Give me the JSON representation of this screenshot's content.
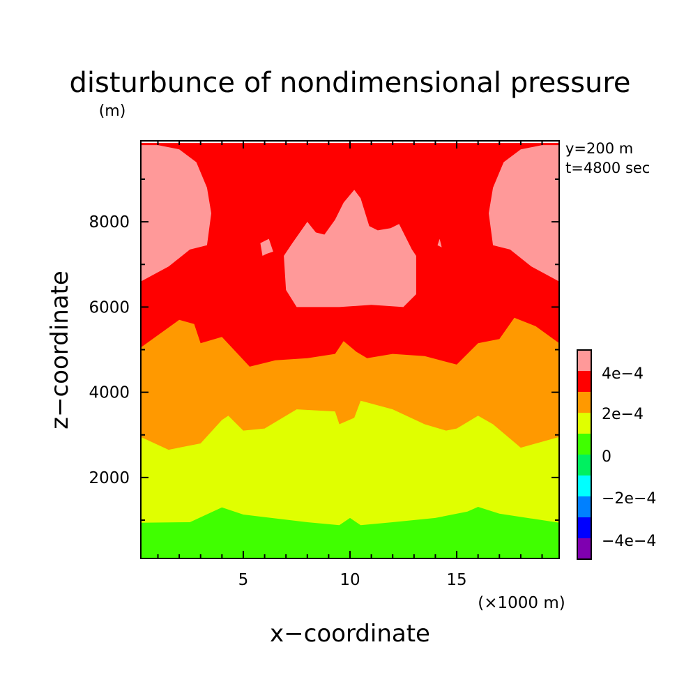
{
  "chart_data": {
    "type": "heatmap",
    "title": "disturbunce of nondimensional pressure",
    "ylabel_unit": "(m)",
    "xlabel": "x−coordinate",
    "ylabel": "z−coordinate",
    "x_unit": "(×1000 m)",
    "annotations": [
      "y=200 m",
      "t=4800 sec"
    ],
    "xlim": [
      0.2,
      19.8
    ],
    "ylim": [
      100,
      9900
    ],
    "x_ticks": [
      {
        "value": 5,
        "label": "5"
      },
      {
        "value": 10,
        "label": "10"
      },
      {
        "value": 15,
        "label": "15"
      }
    ],
    "y_ticks": [
      {
        "value": 2000,
        "label": "2000"
      },
      {
        "value": 4000,
        "label": "4000"
      },
      {
        "value": 6000,
        "label": "6000"
      },
      {
        "value": 8000,
        "label": "8000"
      }
    ],
    "colorbar": {
      "levels": [
        {
          "range": [
            -0.0006,
            -0.0004
          ],
          "color": "#7f00b0"
        },
        {
          "range": [
            -0.0004,
            -0.0003
          ],
          "color": "#0000ff"
        },
        {
          "range": [
            -0.0003,
            -0.0002
          ],
          "color": "#0080ff"
        },
        {
          "range": [
            -0.0002,
            -0.0001
          ],
          "color": "#00ffff"
        },
        {
          "range": [
            -0.0001,
            0.0
          ],
          "color": "#00f060"
        },
        {
          "range": [
            0.0,
            0.0001
          ],
          "color": "#40ff00"
        },
        {
          "range": [
            0.0001,
            0.0002
          ],
          "color": "#e0ff00"
        },
        {
          "range": [
            0.0002,
            0.0003
          ],
          "color": "#ff9900"
        },
        {
          "range": [
            0.0003,
            0.0004
          ],
          "color": "#ff0000"
        },
        {
          "range": [
            0.0004,
            0.0005
          ],
          "color": "#ff9999"
        }
      ],
      "tick_labels": [
        "4e−4",
        "2e−4",
        "0",
        "−2e−4",
        "−4e−4"
      ]
    },
    "contour_bands": [
      {
        "name": "band-0-to-1e-4",
        "color": "#40ff00",
        "top": [
          [
            0.2,
            940
          ],
          [
            2.5,
            950
          ],
          [
            4,
            1300
          ],
          [
            5,
            1130
          ],
          [
            8,
            950
          ],
          [
            9.5,
            880
          ],
          [
            10,
            1050
          ],
          [
            10.5,
            880
          ],
          [
            12,
            950
          ],
          [
            14,
            1050
          ],
          [
            15.5,
            1200
          ],
          [
            16,
            1310
          ],
          [
            17,
            1150
          ],
          [
            19.8,
            940
          ]
        ]
      },
      {
        "name": "band-1e-4-to-2e-4",
        "color": "#e0ff00",
        "top": [
          [
            0.2,
            2950
          ],
          [
            1.5,
            2650
          ],
          [
            3,
            2800
          ],
          [
            4,
            3350
          ],
          [
            4.3,
            3450
          ],
          [
            5,
            3100
          ],
          [
            6,
            3150
          ],
          [
            7.5,
            3600
          ],
          [
            9.3,
            3550
          ],
          [
            9.5,
            3250
          ],
          [
            10.2,
            3400
          ],
          [
            10.5,
            3800
          ],
          [
            12,
            3600
          ],
          [
            13.5,
            3250
          ],
          [
            14.5,
            3100
          ],
          [
            15,
            3150
          ],
          [
            16,
            3450
          ],
          [
            16.7,
            3250
          ],
          [
            18,
            2700
          ],
          [
            19.8,
            2950
          ]
        ]
      },
      {
        "name": "band-2e-4-to-3e-4",
        "color": "#ff9900",
        "top": [
          [
            0.2,
            5050
          ],
          [
            2,
            5700
          ],
          [
            2.7,
            5600
          ],
          [
            3,
            5150
          ],
          [
            4,
            5300
          ],
          [
            5.3,
            4600
          ],
          [
            6.5,
            4750
          ],
          [
            8,
            4800
          ],
          [
            9.3,
            4900
          ],
          [
            9.7,
            5200
          ],
          [
            10.3,
            4950
          ],
          [
            10.8,
            4800
          ],
          [
            12,
            4900
          ],
          [
            13.5,
            4850
          ],
          [
            15,
            4650
          ],
          [
            16,
            5150
          ],
          [
            17,
            5250
          ],
          [
            17.7,
            5750
          ],
          [
            18.7,
            5550
          ],
          [
            19.8,
            5150
          ]
        ]
      },
      {
        "name": "band-3e-4-to-4e-4",
        "color": "#ff0000",
        "top": [
          [
            0.2,
            9850
          ],
          [
            19.8,
            9850
          ]
        ]
      }
    ],
    "high_regions": [
      {
        "name": "high-left",
        "color": "#ff9999",
        "polygon": [
          [
            0.2,
            6600
          ],
          [
            1.5,
            6950
          ],
          [
            2.5,
            7350
          ],
          [
            3.3,
            7450
          ],
          [
            3.5,
            8200
          ],
          [
            3.3,
            8800
          ],
          [
            2.8,
            9400
          ],
          [
            2,
            9700
          ],
          [
            1,
            9800
          ],
          [
            0.2,
            9800
          ]
        ]
      },
      {
        "name": "high-right",
        "color": "#ff9999",
        "polygon": [
          [
            19.8,
            6600
          ],
          [
            18.5,
            6950
          ],
          [
            17.5,
            7350
          ],
          [
            16.7,
            7450
          ],
          [
            16.5,
            8200
          ],
          [
            16.7,
            8800
          ],
          [
            17.2,
            9400
          ],
          [
            18,
            9700
          ],
          [
            19,
            9800
          ],
          [
            19.8,
            9800
          ]
        ]
      },
      {
        "name": "high-center",
        "color": "#ff9999",
        "polygon": [
          [
            6.9,
            7200
          ],
          [
            7.3,
            7500
          ],
          [
            8,
            8000
          ],
          [
            8.4,
            7750
          ],
          [
            8.8,
            7700
          ],
          [
            9.3,
            8050
          ],
          [
            9.7,
            8450
          ],
          [
            10.2,
            8750
          ],
          [
            10.5,
            8550
          ],
          [
            10.9,
            7900
          ],
          [
            11.3,
            7800
          ],
          [
            11.9,
            7850
          ],
          [
            12.3,
            7950
          ],
          [
            12.9,
            7350
          ],
          [
            13.1,
            7200
          ],
          [
            13.1,
            6300
          ],
          [
            12.5,
            6000
          ],
          [
            11,
            6050
          ],
          [
            9.5,
            6000
          ],
          [
            7.5,
            6000
          ],
          [
            7,
            6400
          ]
        ]
      },
      {
        "name": "high-small-left",
        "color": "#ff9999",
        "polygon": [
          [
            5.8,
            7500
          ],
          [
            6.2,
            7600
          ],
          [
            6.4,
            7300
          ],
          [
            6.1,
            7250
          ],
          [
            5.9,
            7200
          ]
        ]
      },
      {
        "name": "high-small-right",
        "color": "#ff9999",
        "polygon": [
          [
            14.2,
            7600
          ],
          [
            14.3,
            7400
          ],
          [
            14.1,
            7450
          ]
        ]
      }
    ]
  }
}
